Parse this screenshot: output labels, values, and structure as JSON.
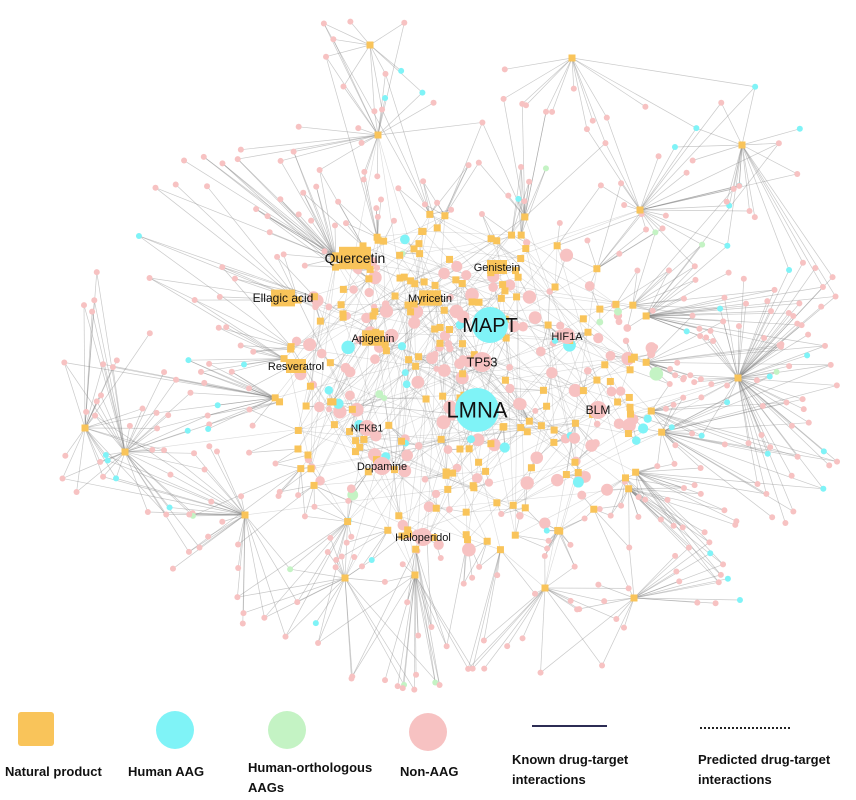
{
  "nodes": [
    {
      "label": "Quercetin"
    },
    {
      "label": "Ellagic acid"
    },
    {
      "label": "Genistein"
    },
    {
      "label": "Myricetin"
    },
    {
      "label": "MAPT"
    },
    {
      "label": "Apigenin"
    },
    {
      "label": "HIF1A"
    },
    {
      "label": "TP53"
    },
    {
      "label": "Resveratrol"
    },
    {
      "label": "LMNA"
    },
    {
      "label": "BLM"
    },
    {
      "label": "NFKB1"
    },
    {
      "label": "Dopamine"
    },
    {
      "label": "Haloperidol"
    }
  ],
  "legend": [
    {
      "label": "Natural product"
    },
    {
      "label": "Human AAG"
    },
    {
      "label": "Human-orthologous AAGs"
    },
    {
      "label": "Non-AAG"
    },
    {
      "label": "Known drug-target interactions"
    },
    {
      "label": "Predicted drug-target interactions"
    }
  ]
}
